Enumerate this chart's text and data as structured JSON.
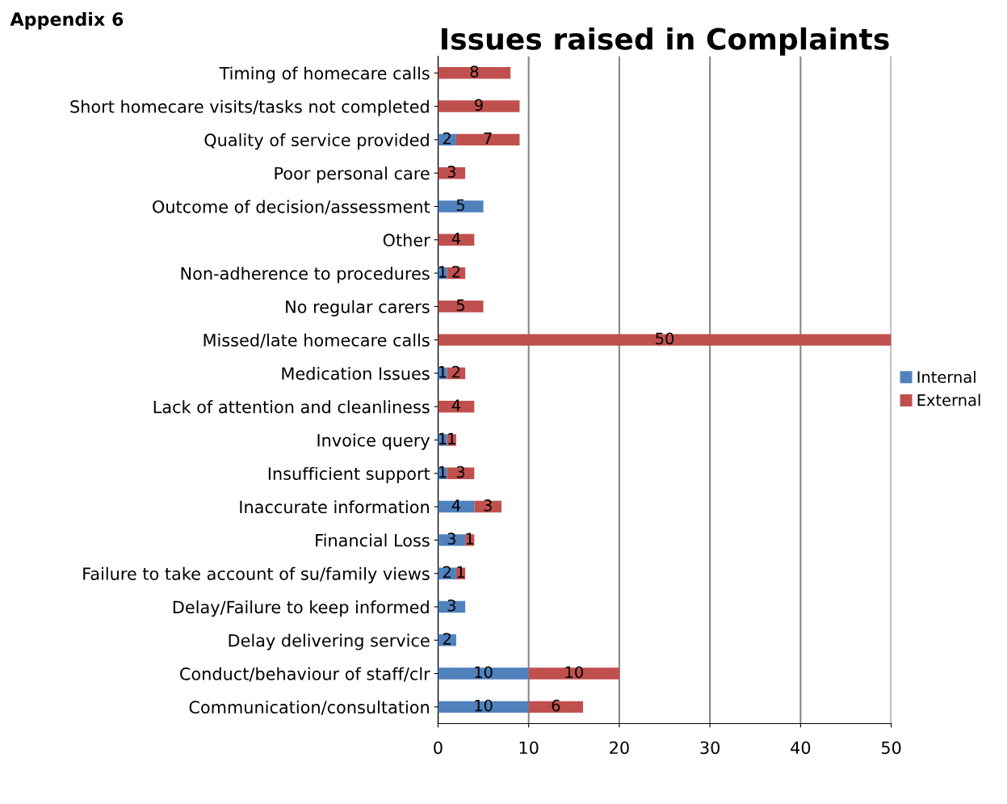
{
  "chart_data": {
    "type": "bar",
    "orientation": "horizontal",
    "stacked": true,
    "title": "Issues raised in Complaints",
    "annotations": [
      "Appendix 6"
    ],
    "categories": [
      "Timing of homecare calls",
      "Short homecare visits/tasks not completed",
      "Quality of service provided",
      "Poor personal care",
      "Outcome of decision/assessment",
      "Other",
      "Non-adherence to procedures",
      "No regular carers",
      "Missed/late homecare calls",
      "Medication Issues",
      "Lack of attention and cleanliness",
      "Invoice query",
      "Insufficient support",
      "Inaccurate information",
      "Financial Loss",
      "Failure to take account of su/family views",
      "Delay/Failure to keep informed",
      "Delay delivering service",
      "Conduct/behaviour of staff/clr",
      "Communication/consultation"
    ],
    "series": [
      {
        "name": "Internal",
        "color": "#4f81bd",
        "values": [
          null,
          null,
          2,
          null,
          5,
          null,
          1,
          null,
          null,
          1,
          null,
          1,
          1,
          4,
          3,
          2,
          3,
          2,
          10,
          10
        ]
      },
      {
        "name": "External",
        "color": "#c0504d",
        "values": [
          8,
          9,
          7,
          3,
          null,
          4,
          2,
          5,
          50,
          2,
          4,
          1,
          3,
          3,
          1,
          1,
          null,
          null,
          10,
          6
        ]
      }
    ],
    "xlim": [
      0,
      50
    ],
    "xticks": [
      0,
      10,
      20,
      30,
      40,
      50
    ],
    "grid": "x",
    "legend": "right",
    "data_labels": true
  }
}
